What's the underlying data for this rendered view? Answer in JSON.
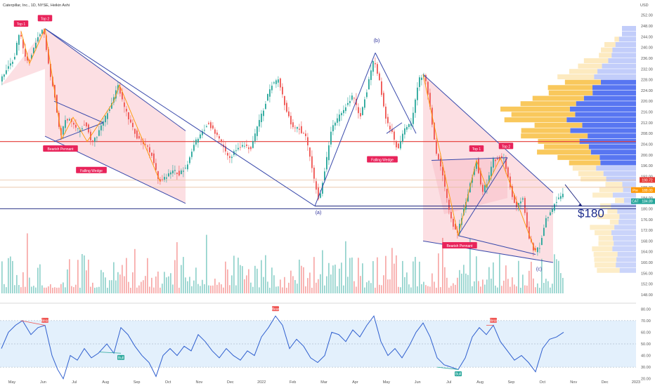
{
  "header": {
    "title": "Caterpillar, Inc., 1D, NYSE, Heikin Ashi",
    "currency": "USD"
  },
  "chart_data": {
    "type": "candlestick",
    "title": "Caterpillar, Inc., 1D, NYSE, Heikin Ashi",
    "price_axis": {
      "ticks": [
        "252.00",
        "248.00",
        "244.00",
        "240.00",
        "236.00",
        "232.00",
        "228.00",
        "224.00",
        "220.00",
        "216.00",
        "212.00",
        "208.00",
        "204.00",
        "200.00",
        "196.00",
        "192.00",
        "188.00",
        "184.00",
        "180.00",
        "176.00",
        "172.00",
        "168.00",
        "164.00",
        "160.00",
        "156.00",
        "152.00",
        "148.00"
      ],
      "ylim": [
        148,
        254
      ]
    },
    "rsi_axis": {
      "ticks": [
        "80.00",
        "70.00",
        "60.00",
        "50.00",
        "40.00",
        "30.00",
        "20.00"
      ],
      "ylim": [
        15,
        85
      ],
      "overbought": 70,
      "oversold": 30
    },
    "time_axis": {
      "ticks": [
        "May",
        "Jun",
        "Jul",
        "Aug",
        "Sep",
        "Oct",
        "Nov",
        "Dec",
        "2022",
        "Feb",
        "Mar",
        "Apr",
        "May",
        "Jun",
        "Jul",
        "Aug",
        "Sep",
        "Oct",
        "Nov",
        "Dec",
        "2023"
      ]
    },
    "price_path": [
      {
        "t": 0,
        "v": 228
      },
      {
        "t": 10,
        "v": 232
      },
      {
        "t": 20,
        "v": 236
      },
      {
        "t": 28,
        "v": 246
      },
      {
        "t": 34,
        "v": 238
      },
      {
        "t": 40,
        "v": 234
      },
      {
        "t": 48,
        "v": 240
      },
      {
        "t": 55,
        "v": 245
      },
      {
        "t": 62,
        "v": 247
      },
      {
        "t": 70,
        "v": 232
      },
      {
        "t": 78,
        "v": 222
      },
      {
        "t": 86,
        "v": 206
      },
      {
        "t": 94,
        "v": 214
      },
      {
        "t": 102,
        "v": 212
      },
      {
        "t": 112,
        "v": 209
      },
      {
        "t": 122,
        "v": 212
      },
      {
        "t": 130,
        "v": 204
      },
      {
        "t": 140,
        "v": 208
      },
      {
        "t": 150,
        "v": 214
      },
      {
        "t": 160,
        "v": 220
      },
      {
        "t": 168,
        "v": 226
      },
      {
        "t": 176,
        "v": 218
      },
      {
        "t": 186,
        "v": 212
      },
      {
        "t": 196,
        "v": 206
      },
      {
        "t": 206,
        "v": 204
      },
      {
        "t": 216,
        "v": 200
      },
      {
        "t": 226,
        "v": 190
      },
      {
        "t": 236,
        "v": 192
      },
      {
        "t": 246,
        "v": 194
      },
      {
        "t": 256,
        "v": 193
      },
      {
        "t": 266,
        "v": 196
      },
      {
        "t": 276,
        "v": 204
      },
      {
        "t": 286,
        "v": 208
      },
      {
        "t": 296,
        "v": 212
      },
      {
        "t": 306,
        "v": 208
      },
      {
        "t": 316,
        "v": 204
      },
      {
        "t": 326,
        "v": 198
      },
      {
        "t": 336,
        "v": 202
      },
      {
        "t": 346,
        "v": 204
      },
      {
        "t": 356,
        "v": 202
      },
      {
        "t": 366,
        "v": 210
      },
      {
        "t": 376,
        "v": 218
      },
      {
        "t": 386,
        "v": 226
      },
      {
        "t": 396,
        "v": 228
      },
      {
        "t": 406,
        "v": 218
      },
      {
        "t": 416,
        "v": 210
      },
      {
        "t": 426,
        "v": 210
      },
      {
        "t": 436,
        "v": 206
      },
      {
        "t": 446,
        "v": 192
      },
      {
        "t": 454,
        "v": 183
      },
      {
        "t": 462,
        "v": 194
      },
      {
        "t": 472,
        "v": 210
      },
      {
        "t": 482,
        "v": 214
      },
      {
        "t": 492,
        "v": 218
      },
      {
        "t": 502,
        "v": 222
      },
      {
        "t": 512,
        "v": 214
      },
      {
        "t": 522,
        "v": 224
      },
      {
        "t": 532,
        "v": 236
      },
      {
        "t": 540,
        "v": 228
      },
      {
        "t": 548,
        "v": 214
      },
      {
        "t": 558,
        "v": 208
      },
      {
        "t": 566,
        "v": 202
      },
      {
        "t": 576,
        "v": 210
      },
      {
        "t": 586,
        "v": 212
      },
      {
        "t": 596,
        "v": 228
      },
      {
        "t": 604,
        "v": 230
      },
      {
        "t": 612,
        "v": 218
      },
      {
        "t": 620,
        "v": 202
      },
      {
        "t": 630,
        "v": 192
      },
      {
        "t": 640,
        "v": 178
      },
      {
        "t": 650,
        "v": 170
      },
      {
        "t": 660,
        "v": 180
      },
      {
        "t": 670,
        "v": 190
      },
      {
        "t": 678,
        "v": 198
      },
      {
        "t": 686,
        "v": 186
      },
      {
        "t": 694,
        "v": 190
      },
      {
        "t": 702,
        "v": 198
      },
      {
        "t": 710,
        "v": 199
      },
      {
        "t": 718,
        "v": 198
      },
      {
        "t": 726,
        "v": 188
      },
      {
        "t": 734,
        "v": 180
      },
      {
        "t": 744,
        "v": 184
      },
      {
        "t": 752,
        "v": 170
      },
      {
        "t": 760,
        "v": 164
      },
      {
        "t": 768,
        "v": 166
      },
      {
        "t": 776,
        "v": 176
      },
      {
        "t": 786,
        "v": 180
      },
      {
        "t": 794,
        "v": 184
      },
      {
        "t": 802,
        "v": 186
      }
    ],
    "rsi_path": [
      {
        "t": 0,
        "v": 46
      },
      {
        "t": 10,
        "v": 60
      },
      {
        "t": 20,
        "v": 66
      },
      {
        "t": 30,
        "v": 70
      },
      {
        "t": 42,
        "v": 58
      },
      {
        "t": 52,
        "v": 64
      },
      {
        "t": 62,
        "v": 66
      },
      {
        "t": 72,
        "v": 40
      },
      {
        "t": 80,
        "v": 28
      },
      {
        "t": 88,
        "v": 20
      },
      {
        "t": 98,
        "v": 40
      },
      {
        "t": 108,
        "v": 36
      },
      {
        "t": 118,
        "v": 46
      },
      {
        "t": 128,
        "v": 38
      },
      {
        "t": 138,
        "v": 42
      },
      {
        "t": 150,
        "v": 50
      },
      {
        "t": 160,
        "v": 42
      },
      {
        "t": 170,
        "v": 64
      },
      {
        "t": 180,
        "v": 58
      },
      {
        "t": 190,
        "v": 48
      },
      {
        "t": 200,
        "v": 40
      },
      {
        "t": 210,
        "v": 34
      },
      {
        "t": 220,
        "v": 22
      },
      {
        "t": 230,
        "v": 40
      },
      {
        "t": 240,
        "v": 46
      },
      {
        "t": 250,
        "v": 40
      },
      {
        "t": 260,
        "v": 48
      },
      {
        "t": 270,
        "v": 44
      },
      {
        "t": 280,
        "v": 58
      },
      {
        "t": 290,
        "v": 52
      },
      {
        "t": 300,
        "v": 44
      },
      {
        "t": 310,
        "v": 38
      },
      {
        "t": 320,
        "v": 46
      },
      {
        "t": 330,
        "v": 40
      },
      {
        "t": 340,
        "v": 36
      },
      {
        "t": 350,
        "v": 44
      },
      {
        "t": 360,
        "v": 40
      },
      {
        "t": 370,
        "v": 56
      },
      {
        "t": 380,
        "v": 64
      },
      {
        "t": 390,
        "v": 74
      },
      {
        "t": 400,
        "v": 66
      },
      {
        "t": 410,
        "v": 46
      },
      {
        "t": 420,
        "v": 54
      },
      {
        "t": 430,
        "v": 48
      },
      {
        "t": 440,
        "v": 38
      },
      {
        "t": 450,
        "v": 34
      },
      {
        "t": 460,
        "v": 40
      },
      {
        "t": 470,
        "v": 60
      },
      {
        "t": 480,
        "v": 58
      },
      {
        "t": 490,
        "v": 52
      },
      {
        "t": 500,
        "v": 62
      },
      {
        "t": 510,
        "v": 56
      },
      {
        "t": 520,
        "v": 66
      },
      {
        "t": 530,
        "v": 74
      },
      {
        "t": 540,
        "v": 52
      },
      {
        "t": 550,
        "v": 40
      },
      {
        "t": 560,
        "v": 46
      },
      {
        "t": 570,
        "v": 38
      },
      {
        "t": 580,
        "v": 48
      },
      {
        "t": 590,
        "v": 60
      },
      {
        "t": 600,
        "v": 68
      },
      {
        "t": 610,
        "v": 56
      },
      {
        "t": 620,
        "v": 38
      },
      {
        "t": 630,
        "v": 32
      },
      {
        "t": 640,
        "v": 30
      },
      {
        "t": 650,
        "v": 28
      },
      {
        "t": 660,
        "v": 38
      },
      {
        "t": 670,
        "v": 56
      },
      {
        "t": 680,
        "v": 64
      },
      {
        "t": 690,
        "v": 58
      },
      {
        "t": 700,
        "v": 66
      },
      {
        "t": 710,
        "v": 52
      },
      {
        "t": 720,
        "v": 44
      },
      {
        "t": 730,
        "v": 36
      },
      {
        "t": 740,
        "v": 40
      },
      {
        "t": 750,
        "v": 34
      },
      {
        "t": 760,
        "v": 26
      },
      {
        "t": 770,
        "v": 46
      },
      {
        "t": 780,
        "v": 54
      },
      {
        "t": 790,
        "v": 56
      },
      {
        "t": 800,
        "v": 60
      }
    ],
    "horizontal_levels": [
      {
        "value": 205,
        "color": "#e53935"
      },
      {
        "value": 180,
        "color": "#1a237e"
      },
      {
        "value": 190.72,
        "color": "#e8c0a0"
      },
      {
        "value": 188.0,
        "color": "#e8c0a0"
      }
    ],
    "price_badges": [
      {
        "label": "",
        "value": "190.72",
        "color": "#e53935"
      },
      {
        "label": "Pre",
        "value": "188.00",
        "color": "#ff9800"
      },
      {
        "label": "CAT",
        "value": "184.89",
        "color": "#26a69a"
      }
    ],
    "annotations": {
      "top1": "Top 1",
      "top2": "Top 2",
      "bearish_pennant": "Bearish Pennant",
      "falling_wedge": "Falling Wedge",
      "wave_b": "(b)",
      "wave_a": "(a)",
      "wave_c": "(c)",
      "target": "$180",
      "bear": "Bear",
      "bull": "Bull"
    },
    "colors": {
      "up": "#26a69a",
      "down": "#ef5350",
      "channel_fill": "#f8b8c0",
      "channel_line": "#3949ab",
      "zigzag": "#ff9800",
      "rsi": "#2f5fcf",
      "rsi_band": "#e3f0fc",
      "vp_up": "#4f6ff0",
      "vp_down": "#f8c24a"
    }
  }
}
